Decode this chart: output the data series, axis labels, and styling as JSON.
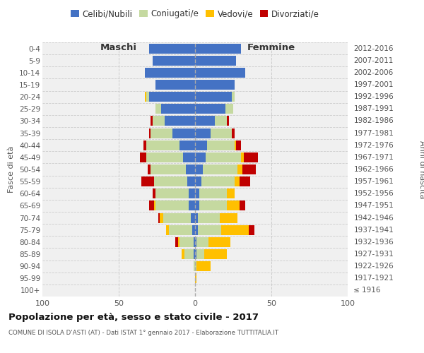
{
  "age_groups": [
    "0-4",
    "5-9",
    "10-14",
    "15-19",
    "20-24",
    "25-29",
    "30-34",
    "35-39",
    "40-44",
    "45-49",
    "50-54",
    "55-59",
    "60-64",
    "65-69",
    "70-74",
    "75-79",
    "80-84",
    "85-89",
    "90-94",
    "95-99",
    "100+"
  ],
  "birth_years": [
    "2012-2016",
    "2007-2011",
    "2002-2006",
    "1997-2001",
    "1992-1996",
    "1987-1991",
    "1982-1986",
    "1977-1981",
    "1972-1976",
    "1967-1971",
    "1962-1966",
    "1957-1961",
    "1952-1956",
    "1947-1951",
    "1942-1946",
    "1937-1941",
    "1932-1936",
    "1927-1931",
    "1922-1926",
    "1917-1921",
    "≤ 1916"
  ],
  "maschi": {
    "celibi": [
      30,
      28,
      33,
      26,
      30,
      22,
      20,
      15,
      10,
      8,
      6,
      5,
      4,
      4,
      3,
      2,
      1,
      1,
      0,
      0,
      0
    ],
    "coniugati": [
      0,
      0,
      0,
      0,
      2,
      4,
      8,
      14,
      22,
      24,
      23,
      22,
      22,
      22,
      18,
      15,
      9,
      6,
      1,
      0,
      0
    ],
    "vedovi": [
      0,
      0,
      0,
      0,
      1,
      0,
      0,
      0,
      0,
      0,
      0,
      0,
      0,
      1,
      2,
      2,
      1,
      2,
      0,
      0,
      0
    ],
    "divorziati": [
      0,
      0,
      0,
      0,
      0,
      0,
      1,
      1,
      2,
      4,
      2,
      8,
      2,
      3,
      1,
      0,
      2,
      0,
      0,
      0,
      0
    ]
  },
  "femmine": {
    "nubili": [
      30,
      27,
      33,
      26,
      24,
      20,
      13,
      10,
      8,
      7,
      5,
      4,
      3,
      3,
      2,
      2,
      1,
      1,
      0,
      0,
      0
    ],
    "coniugate": [
      0,
      0,
      0,
      0,
      2,
      5,
      8,
      14,
      18,
      23,
      23,
      22,
      18,
      18,
      14,
      15,
      8,
      5,
      1,
      0,
      0
    ],
    "vedove": [
      0,
      0,
      0,
      0,
      0,
      0,
      0,
      0,
      1,
      2,
      3,
      3,
      5,
      8,
      12,
      18,
      14,
      15,
      9,
      1,
      0
    ],
    "divorziate": [
      0,
      0,
      0,
      0,
      0,
      0,
      1,
      2,
      3,
      9,
      9,
      7,
      0,
      4,
      0,
      4,
      0,
      0,
      0,
      0,
      0
    ]
  },
  "colors": {
    "celibi": "#4472C4",
    "coniugati": "#c5d9a0",
    "vedovi": "#ffc000",
    "divorziati": "#c00000"
  },
  "title": "Popolazione per età, sesso e stato civile - 2017",
  "subtitle": "COMUNE DI ISOLA D'ASTI (AT) - Dati ISTAT 1° gennaio 2017 - Elaborazione TUTTITALIA.IT",
  "xlabel_left": "Maschi",
  "xlabel_right": "Femmine",
  "ylabel_left": "Fasce di età",
  "ylabel_right": "Anni di nascita",
  "xlim": 100,
  "legend_labels": [
    "Celibi/Nubili",
    "Coniugati/e",
    "Vedovi/e",
    "Divorziati/e"
  ],
  "bg_color": "#f0f0f0",
  "grid_color": "#cccccc"
}
